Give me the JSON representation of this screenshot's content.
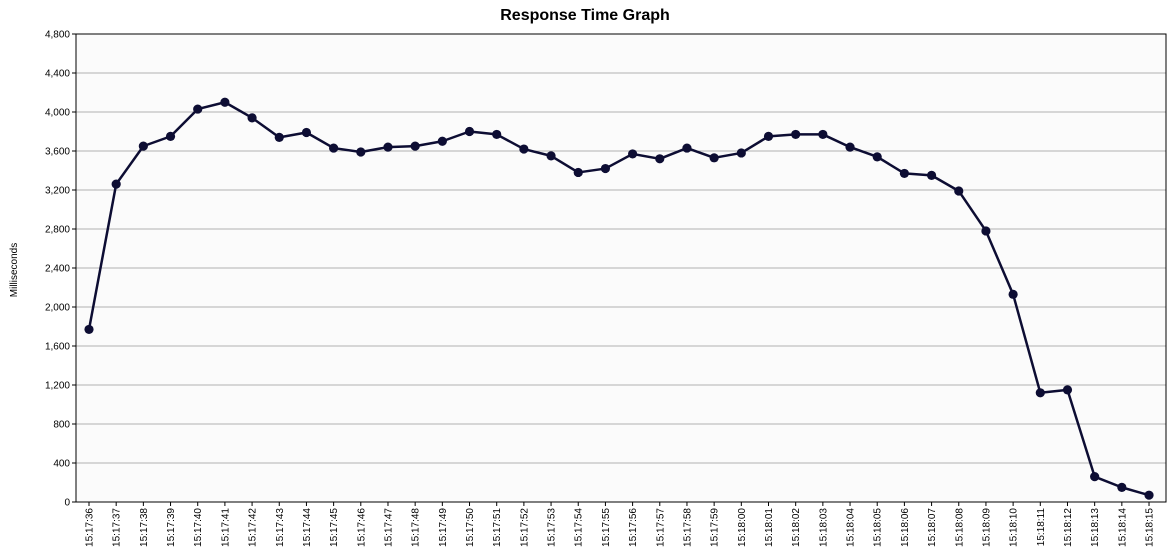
{
  "chart_data": {
    "type": "line",
    "title": "Response Time Graph",
    "xlabel": "",
    "ylabel": "Milliseconds",
    "ylim": [
      0,
      4800
    ],
    "yticks": [
      0,
      400,
      800,
      1200,
      1600,
      2000,
      2400,
      2800,
      3200,
      3600,
      4000,
      4400,
      4800
    ],
    "ytick_labels": [
      "0",
      "400",
      "800",
      "1,200",
      "1,600",
      "2,000",
      "2,400",
      "2,800",
      "3,200",
      "3,600",
      "4,000",
      "4,400",
      "4,800"
    ],
    "grid": true,
    "legend": "none",
    "categories": [
      "15:17:36",
      "15:17:37",
      "15:17:38",
      "15:17:39",
      "15:17:40",
      "15:17:41",
      "15:17:42",
      "15:17:43",
      "15:17:44",
      "15:17:45",
      "15:17:46",
      "15:17:47",
      "15:17:48",
      "15:17:49",
      "15:17:50",
      "15:17:51",
      "15:17:52",
      "15:17:53",
      "15:17:54",
      "15:17:55",
      "15:17:56",
      "15:17:57",
      "15:17:58",
      "15:17:59",
      "15:18:00",
      "15:18:01",
      "15:18:02",
      "15:18:03",
      "15:18:04",
      "15:18:05",
      "15:18:06",
      "15:18:07",
      "15:18:08",
      "15:18:09",
      "15:18:10",
      "15:18:11",
      "15:18:12",
      "15:18:13",
      "15:18:14",
      "15:18:15"
    ],
    "series": [
      {
        "values": [
          1770,
          3260,
          3650,
          3750,
          4030,
          4100,
          3940,
          3740,
          3790,
          3630,
          3590,
          3640,
          3650,
          3700,
          3800,
          3770,
          3620,
          3550,
          3380,
          3420,
          3570,
          3520,
          3630,
          3530,
          3580,
          3750,
          3770,
          3770,
          3640,
          3540,
          3370,
          3350,
          3190,
          2780,
          2130,
          1120,
          1150,
          260,
          150,
          70
        ]
      }
    ],
    "colors": {
      "line": "#0d0d33",
      "marker": "#0d0d33",
      "grid": "#b0b0b0",
      "plot_bg": "#fbfbfb",
      "axis": "#000000"
    }
  }
}
